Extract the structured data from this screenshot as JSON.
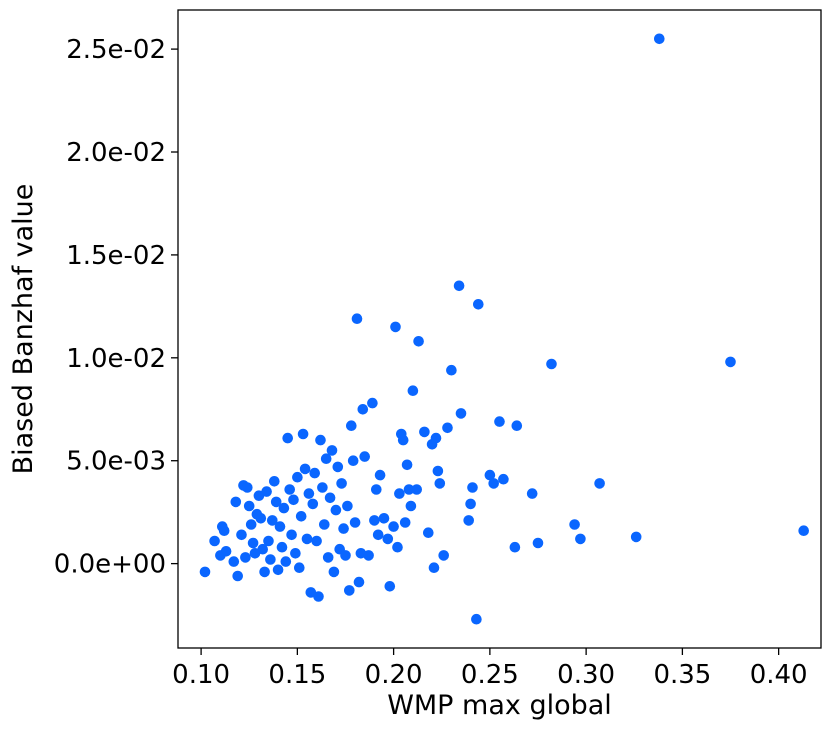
{
  "chart_data": {
    "type": "scatter",
    "title": "",
    "xlabel": "WMP max global",
    "ylabel": "Biased Banzhaf value",
    "xlim": [
      0.088,
      0.422
    ],
    "ylim": [
      -0.0041,
      0.0269
    ],
    "xticks": [
      0.1,
      0.15,
      0.2,
      0.25,
      0.3,
      0.35,
      0.4
    ],
    "xtick_labels": [
      "0.10",
      "0.15",
      "0.20",
      "0.25",
      "0.30",
      "0.35",
      "0.40"
    ],
    "yticks": [
      0.0,
      0.005,
      0.01,
      0.015,
      0.02,
      0.025
    ],
    "ytick_labels": [
      "0.0e+00",
      "5.0e-03",
      "1.0e-02",
      "1.5e-02",
      "2.0e-02",
      "2.5e-02"
    ],
    "grid": false,
    "legend": "none",
    "marker_color": "#0a66ff",
    "points": [
      [
        0.102,
        -0.0004
      ],
      [
        0.107,
        0.0011
      ],
      [
        0.11,
        0.0004
      ],
      [
        0.111,
        0.0018
      ],
      [
        0.112,
        0.0016
      ],
      [
        0.113,
        0.0006
      ],
      [
        0.117,
        0.0001
      ],
      [
        0.118,
        0.003
      ],
      [
        0.119,
        -0.0006
      ],
      [
        0.121,
        0.0014
      ],
      [
        0.122,
        0.0038
      ],
      [
        0.123,
        0.0003
      ],
      [
        0.124,
        0.0037
      ],
      [
        0.125,
        0.0028
      ],
      [
        0.126,
        0.0019
      ],
      [
        0.127,
        0.001
      ],
      [
        0.128,
        0.0005
      ],
      [
        0.129,
        0.0024
      ],
      [
        0.13,
        0.0033
      ],
      [
        0.131,
        0.0022
      ],
      [
        0.132,
        0.0007
      ],
      [
        0.133,
        -0.0004
      ],
      [
        0.134,
        0.0035
      ],
      [
        0.135,
        0.0011
      ],
      [
        0.136,
        0.0002
      ],
      [
        0.137,
        0.0021
      ],
      [
        0.138,
        0.004
      ],
      [
        0.139,
        0.003
      ],
      [
        0.14,
        -0.0003
      ],
      [
        0.141,
        0.0018
      ],
      [
        0.142,
        0.0008
      ],
      [
        0.143,
        0.0027
      ],
      [
        0.144,
        0.0001
      ],
      [
        0.145,
        0.0061
      ],
      [
        0.146,
        0.0036
      ],
      [
        0.147,
        0.0014
      ],
      [
        0.148,
        0.0031
      ],
      [
        0.149,
        0.0005
      ],
      [
        0.15,
        0.0042
      ],
      [
        0.151,
        -0.0002
      ],
      [
        0.152,
        0.0023
      ],
      [
        0.153,
        0.0063
      ],
      [
        0.154,
        0.0046
      ],
      [
        0.155,
        0.0012
      ],
      [
        0.156,
        0.0034
      ],
      [
        0.157,
        -0.0014
      ],
      [
        0.158,
        0.0029
      ],
      [
        0.159,
        0.0044
      ],
      [
        0.16,
        0.0011
      ],
      [
        0.161,
        -0.0016
      ],
      [
        0.162,
        0.006
      ],
      [
        0.163,
        0.0037
      ],
      [
        0.164,
        0.0019
      ],
      [
        0.165,
        0.0051
      ],
      [
        0.166,
        0.0003
      ],
      [
        0.167,
        0.0032
      ],
      [
        0.168,
        0.0055
      ],
      [
        0.169,
        -0.0004
      ],
      [
        0.17,
        0.0026
      ],
      [
        0.171,
        0.0047
      ],
      [
        0.172,
        0.0007
      ],
      [
        0.173,
        0.0039
      ],
      [
        0.174,
        0.0017
      ],
      [
        0.175,
        0.0004
      ],
      [
        0.176,
        0.0028
      ],
      [
        0.177,
        -0.0013
      ],
      [
        0.178,
        0.0067
      ],
      [
        0.179,
        0.005
      ],
      [
        0.18,
        0.002
      ],
      [
        0.181,
        0.0119
      ],
      [
        0.182,
        -0.0009
      ],
      [
        0.183,
        0.0005
      ],
      [
        0.184,
        0.0075
      ],
      [
        0.185,
        0.0052
      ],
      [
        0.187,
        0.0004
      ],
      [
        0.189,
        0.0078
      ],
      [
        0.19,
        0.0021
      ],
      [
        0.191,
        0.0036
      ],
      [
        0.192,
        0.0014
      ],
      [
        0.193,
        0.0043
      ],
      [
        0.195,
        0.0022
      ],
      [
        0.197,
        0.0012
      ],
      [
        0.198,
        -0.0011
      ],
      [
        0.2,
        0.0018
      ],
      [
        0.201,
        0.0115
      ],
      [
        0.202,
        0.0008
      ],
      [
        0.203,
        0.0034
      ],
      [
        0.204,
        0.0063
      ],
      [
        0.205,
        0.006
      ],
      [
        0.206,
        0.002
      ],
      [
        0.207,
        0.0048
      ],
      [
        0.208,
        0.0036
      ],
      [
        0.209,
        0.0028
      ],
      [
        0.21,
        0.0084
      ],
      [
        0.212,
        0.0036
      ],
      [
        0.213,
        0.0108
      ],
      [
        0.216,
        0.0064
      ],
      [
        0.218,
        0.0015
      ],
      [
        0.22,
        0.0058
      ],
      [
        0.221,
        -0.0002
      ],
      [
        0.222,
        0.0061
      ],
      [
        0.223,
        0.0045
      ],
      [
        0.224,
        0.0039
      ],
      [
        0.226,
        0.0004
      ],
      [
        0.228,
        0.0066
      ],
      [
        0.23,
        0.0094
      ],
      [
        0.234,
        0.0135
      ],
      [
        0.235,
        0.0073
      ],
      [
        0.239,
        0.0021
      ],
      [
        0.24,
        0.0029
      ],
      [
        0.241,
        0.0037
      ],
      [
        0.243,
        -0.0027
      ],
      [
        0.244,
        0.0126
      ],
      [
        0.25,
        0.0043
      ],
      [
        0.252,
        0.0039
      ],
      [
        0.255,
        0.0069
      ],
      [
        0.257,
        0.0041
      ],
      [
        0.263,
        0.0008
      ],
      [
        0.264,
        0.0067
      ],
      [
        0.272,
        0.0034
      ],
      [
        0.275,
        0.001
      ],
      [
        0.282,
        0.0097
      ],
      [
        0.294,
        0.0019
      ],
      [
        0.297,
        0.0012
      ],
      [
        0.307,
        0.0039
      ],
      [
        0.326,
        0.0013
      ],
      [
        0.338,
        0.0255
      ],
      [
        0.375,
        0.0098
      ],
      [
        0.413,
        0.0016
      ]
    ]
  }
}
